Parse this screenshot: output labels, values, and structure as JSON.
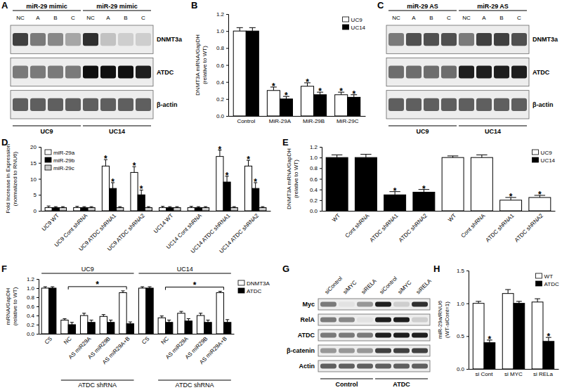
{
  "chart_data": [
    {
      "type": "blot",
      "panel": "A",
      "lanes": [
        "NC",
        "A",
        "B",
        "C",
        "NC",
        "A",
        "B",
        "C"
      ],
      "top_groups": [
        {
          "label": "miR-29 mimic",
          "start": 0,
          "end": 3
        },
        {
          "label": "miR-29 mimic",
          "start": 4,
          "end": 7
        }
      ],
      "bottom_groups": [
        {
          "label": "UC9",
          "start": 0,
          "end": 3
        },
        {
          "label": "UC14",
          "start": 4,
          "end": 7
        }
      ],
      "rows": [
        {
          "name": "DNMT3a",
          "intensity": [
            0.8,
            0.6,
            0.55,
            0.45,
            0.85,
            0.35,
            0.3,
            0.3
          ]
        },
        {
          "name": "ATDC",
          "intensity": [
            0.6,
            0.6,
            0.6,
            0.6,
            0.95,
            0.95,
            0.95,
            0.9
          ]
        },
        {
          "name": "β-actin",
          "intensity": [
            0.7,
            0.7,
            0.7,
            0.7,
            0.7,
            0.7,
            0.7,
            0.7
          ]
        }
      ]
    },
    {
      "type": "bar",
      "panel": "B",
      "ylabel": [
        "DNMT3A mRNA/GapDH",
        "(relative to WT)"
      ],
      "categories": [
        "Control",
        "MiR-29A",
        "MiR-29B",
        "MiR-29C"
      ],
      "series": [
        {
          "name": "UC9",
          "color": "#ffffff",
          "values": [
            1.0,
            0.3,
            0.35,
            0.25
          ],
          "errors": [
            0.04,
            0.04,
            0.04,
            0.03
          ],
          "annotations": [
            null,
            "*",
            "*",
            "*"
          ]
        },
        {
          "name": "UC14",
          "color": "#000000",
          "values": [
            1.0,
            0.2,
            0.25,
            0.22
          ],
          "errors": [
            0.04,
            0.03,
            0.03,
            0.03
          ],
          "annotations": [
            null,
            "*",
            "*",
            "*"
          ]
        }
      ],
      "ylim": [
        0,
        1.2
      ],
      "yticks": [
        {
          "value": 0,
          "label": "0.0"
        },
        0.2,
        0.4,
        0.6,
        0.8,
        {
          "value": 1,
          "label": "1.0"
        },
        1.2
      ],
      "legend": "top-right"
    },
    {
      "type": "blot",
      "panel": "C",
      "lanes": [
        "NC",
        "A",
        "B",
        "C",
        "NC",
        "A",
        "B",
        "C"
      ],
      "top_groups": [
        {
          "label": "miR-29 AS",
          "start": 0,
          "end": 3
        },
        {
          "label": "miR-29 AS",
          "start": 4,
          "end": 7
        }
      ],
      "bottom_groups": [
        {
          "label": "UC9",
          "start": 0,
          "end": 3
        },
        {
          "label": "UC14",
          "start": 4,
          "end": 7
        }
      ],
      "rows": [
        {
          "name": "DNMT3a",
          "intensity": [
            0.6,
            0.75,
            0.75,
            0.75,
            0.6,
            0.8,
            0.8,
            0.75
          ]
        },
        {
          "name": "ATDC",
          "intensity": [
            0.65,
            0.65,
            0.65,
            0.65,
            0.9,
            0.9,
            0.9,
            0.9
          ]
        },
        {
          "name": "β-actin",
          "intensity": [
            0.7,
            0.7,
            0.7,
            0.7,
            0.7,
            0.7,
            0.7,
            0.7
          ]
        }
      ]
    },
    {
      "type": "bar",
      "panel": "D",
      "ylabel": [
        "Fold Increase in Expression",
        "(normalized to RNU6)"
      ],
      "categories": [
        "UC9 WT",
        "UC9 Cont shRNA",
        "UC9 ATDC shRNA1",
        "UC9 ATDC shRNA2",
        "UC14 WT",
        "UC14 Cont shRNA",
        "UC14 ATDC shRNA1",
        "UC14 ATDC shRNA2"
      ],
      "series": [
        {
          "name": "miR-29a",
          "color": "#ffffff",
          "values": [
            1,
            1,
            14,
            12,
            1,
            1,
            17,
            14
          ],
          "errors": [
            0.5,
            0.4,
            2,
            1.8,
            0.4,
            0.4,
            2,
            1.8
          ],
          "annotations": [
            null,
            null,
            "*",
            "*",
            null,
            null,
            "*",
            "*"
          ]
        },
        {
          "name": "miR-29b",
          "color": "#000000",
          "values": [
            1,
            1,
            7,
            5,
            1,
            1,
            9,
            7
          ],
          "errors": [
            0.3,
            0.3,
            1.8,
            1.5,
            0.3,
            0.3,
            1.8,
            1.8
          ],
          "annotations": [
            null,
            null,
            "*",
            "*",
            null,
            null,
            "*",
            "*"
          ]
        },
        {
          "name": "miR-29c",
          "color": "#cccccc",
          "values": [
            1,
            1,
            1,
            1,
            1,
            1,
            1,
            1
          ],
          "errors": [
            0.3,
            0.3,
            0.3,
            0.3,
            0.3,
            0.3,
            0.3,
            0.3
          ],
          "annotations": [
            null,
            null,
            null,
            null,
            null,
            null,
            null,
            null
          ]
        }
      ],
      "ylim": [
        0,
        20
      ],
      "yticks": [
        0,
        5,
        10,
        15,
        20
      ],
      "legend": "top-left"
    },
    {
      "type": "bar",
      "panel": "E",
      "ylabel": [
        "DNMT3A mRNA/GapDH",
        "(relative to WT)"
      ],
      "categories": [
        "WT",
        "Cont shRNA",
        "ATDC shRNA1",
        "ATDC shRNA2",
        "WT",
        "Cont shRNA",
        "ATDC shRNA1",
        "ATDC shRNA2"
      ],
      "series": [
        {
          "name": "UC9",
          "color": "#ffffff",
          "values": [
            null,
            null,
            null,
            null,
            1.0,
            1.0,
            0.2,
            0.25
          ],
          "errors": [
            null,
            null,
            null,
            null,
            0.03,
            0.05,
            0.05,
            0.04
          ],
          "annotations": [
            null,
            null,
            null,
            null,
            null,
            null,
            "*",
            "*"
          ]
        },
        {
          "name": "UC14",
          "color": "#000000",
          "values": [
            1.0,
            1.0,
            0.3,
            0.35,
            null,
            null,
            null,
            null
          ],
          "errors": [
            0.05,
            0.06,
            0.06,
            0.05,
            null,
            null,
            null,
            null
          ],
          "annotations": [
            null,
            null,
            "*",
            "*",
            null,
            null,
            null,
            null
          ]
        }
      ],
      "ylim": [
        0,
        1.2
      ],
      "yticks": [
        {
          "value": 0,
          "label": "0.0"
        },
        0.2,
        0.4,
        0.6,
        0.8,
        {
          "value": 1,
          "label": "1.0"
        },
        1.2
      ],
      "legend": "top-right"
    },
    {
      "type": "bar",
      "panel": "F",
      "ylabel": [
        "mRNA/GapDH",
        "(relative to WT)"
      ],
      "categories": [
        "CS",
        "NC",
        "AS miR29A",
        "AS miR29B",
        "AS miR29A+B",
        "CS",
        "NC",
        "AS miR29A",
        "AS miR29B",
        "AS miR29A+B"
      ],
      "series": [
        {
          "name": "DNMT3A",
          "color": "#ffffff",
          "values": [
            1.0,
            0.3,
            0.4,
            0.38,
            0.9,
            1.0,
            0.35,
            0.45,
            0.4,
            0.9
          ],
          "errors": [
            0.03,
            0.03,
            0.05,
            0.04,
            0.04,
            0.03,
            0.04,
            0.04,
            0.05,
            0.03
          ]
        },
        {
          "name": "ATDC",
          "color": "#000000",
          "values": [
            1.0,
            0.2,
            0.25,
            0.25,
            0.22,
            1.0,
            0.25,
            0.28,
            0.25,
            0.25
          ],
          "errors": [
            0.03,
            0.05,
            0.05,
            0.05,
            0.04,
            0.03,
            0.05,
            0.05,
            0.05,
            0.06
          ]
        }
      ],
      "ylim": [
        0,
        1.2
      ],
      "yticks": [
        {
          "value": 0,
          "label": "0.0"
        },
        0.2,
        0.4,
        0.6,
        0.8,
        {
          "value": 1,
          "label": "1.0"
        },
        1.2
      ],
      "top_groups": [
        {
          "label": "UC9",
          "start": 0,
          "end": 4
        },
        {
          "label": "UC14",
          "start": 5,
          "end": 9
        }
      ],
      "bottom_groups": [
        {
          "label": "ATDC shRNA",
          "start": 1,
          "end": 4
        },
        {
          "label": "ATDC shRNA",
          "start": 6,
          "end": 9
        }
      ],
      "brackets": [
        {
          "from": 1,
          "to": 4,
          "label": "*"
        },
        {
          "from": 6,
          "to": 9,
          "label": "*"
        }
      ],
      "legend": "right"
    },
    {
      "type": "blot",
      "panel": "G",
      "lanes": [
        "siControl",
        "siMYC",
        "siRELA",
        "siControl",
        "siMYC",
        "siRELA"
      ],
      "bottom_groups": [
        {
          "label": "Control",
          "start": 0,
          "end": 2
        },
        {
          "label": "ATDC",
          "start": 3,
          "end": 5
        }
      ],
      "rows": [
        {
          "name": "Myc",
          "intensity": [
            0.6,
            0.2,
            0.5,
            0.9,
            0.3,
            0.85
          ]
        },
        {
          "name": "RelA",
          "intensity": [
            0.6,
            0.55,
            0.2,
            0.9,
            0.9,
            0.3
          ]
        },
        {
          "name": "ATDC",
          "intensity": [
            0.6,
            0.6,
            0.6,
            0.9,
            0.9,
            0.9
          ]
        },
        {
          "name": "β-catenin",
          "intensity": [
            0.5,
            0.5,
            0.5,
            0.8,
            0.8,
            0.8
          ]
        },
        {
          "name": "Actin",
          "intensity": [
            0.7,
            0.7,
            0.7,
            0.7,
            0.7,
            0.7
          ]
        }
      ]
    },
    {
      "type": "bar",
      "panel": "H",
      "ylabel": [
        "miR-29a/RNU6",
        "(WT-siCont=1)"
      ],
      "categories": [
        "si Cont",
        "si MYC",
        "si RELa"
      ],
      "series": [
        {
          "name": "WT",
          "color": "#ffffff",
          "values": [
            1.0,
            1.15,
            1.02
          ],
          "errors": [
            0.03,
            0.06,
            0.05
          ],
          "annotations": [
            null,
            null,
            null
          ]
        },
        {
          "name": "ATDC",
          "color": "#000000",
          "values": [
            0.4,
            1.0,
            0.42
          ],
          "errors": [
            0.04,
            0.03,
            0.06
          ],
          "annotations": [
            "*",
            null,
            "*"
          ]
        }
      ],
      "ylim": [
        0,
        1.5
      ],
      "yticks": [
        {
          "value": 0,
          "label": "0.0"
        },
        0.5,
        {
          "value": 1,
          "label": "1.0"
        },
        1.5
      ],
      "legend": "top-right"
    }
  ]
}
